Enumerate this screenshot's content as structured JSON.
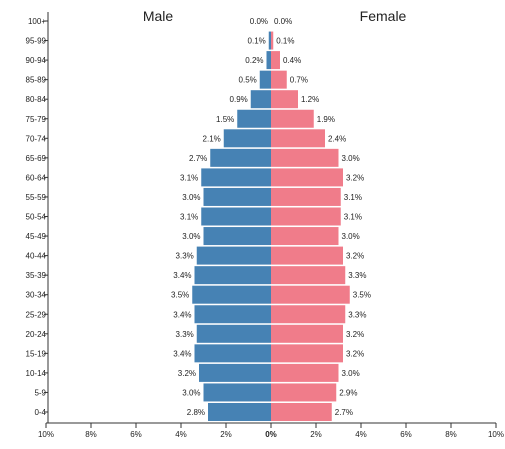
{
  "chart_data": {
    "type": "bar",
    "orientation": "horizontal-diverging",
    "categories": [
      "100+",
      "95-99",
      "90-94",
      "85-89",
      "80-84",
      "75-79",
      "70-74",
      "65-69",
      "60-64",
      "55-59",
      "50-54",
      "45-49",
      "40-44",
      "35-39",
      "30-34",
      "25-29",
      "20-24",
      "15-19",
      "10-14",
      "5-9",
      "0-4"
    ],
    "series": [
      {
        "name": "Male",
        "color": "#4682b4",
        "values": [
          0.0,
          0.1,
          0.2,
          0.5,
          0.9,
          1.5,
          2.1,
          2.7,
          3.1,
          3.0,
          3.1,
          3.0,
          3.3,
          3.4,
          3.5,
          3.4,
          3.3,
          3.4,
          3.2,
          3.0,
          2.8
        ],
        "labels": [
          "0.0%",
          "0.1%",
          "0.2%",
          "0.5%",
          "0.9%",
          "1.5%",
          "2.1%",
          "2.7%",
          "3.1%",
          "3.0%",
          "3.1%",
          "3.0%",
          "3.3%",
          "3.4%",
          "3.5%",
          "3.4%",
          "3.3%",
          "3.4%",
          "3.2%",
          "3.0%",
          "2.8%"
        ]
      },
      {
        "name": "Female",
        "color": "#f07c8a",
        "values": [
          0.0,
          0.1,
          0.4,
          0.7,
          1.2,
          1.9,
          2.4,
          3.0,
          3.2,
          3.1,
          3.1,
          3.0,
          3.2,
          3.3,
          3.5,
          3.3,
          3.2,
          3.2,
          3.0,
          2.9,
          2.7
        ],
        "labels": [
          "0.0%",
          "0.1%",
          "0.4%",
          "0.7%",
          "1.2%",
          "1.9%",
          "2.4%",
          "3.0%",
          "3.2%",
          "3.1%",
          "3.1%",
          "3.0%",
          "3.2%",
          "3.3%",
          "3.5%",
          "3.3%",
          "3.2%",
          "3.2%",
          "3.0%",
          "2.9%",
          "2.7%"
        ]
      }
    ],
    "xlim": [
      -10,
      10
    ],
    "x_ticks": [
      -10,
      -8,
      -6,
      -4,
      -2,
      0,
      2,
      4,
      6,
      8,
      10
    ],
    "x_tick_labels": [
      "10%",
      "8%",
      "6%",
      "4%",
      "2%",
      "0%",
      "2%",
      "4%",
      "6%",
      "8%",
      "10%"
    ],
    "grid": false
  }
}
